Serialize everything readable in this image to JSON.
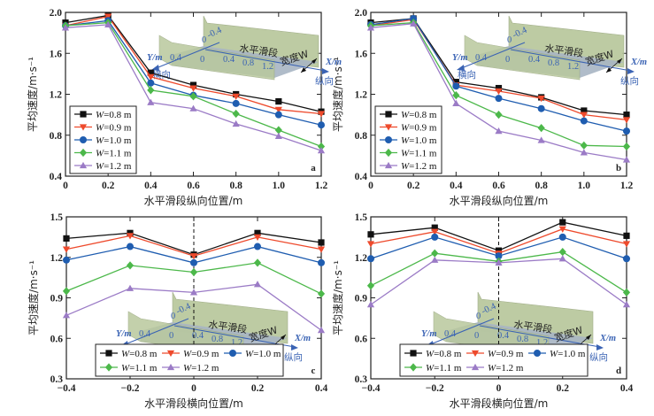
{
  "colors": {
    "W=0.8 m": "#111111",
    "W=0.9 m": "#ee4a2c",
    "W=1.0 m": "#1f5db0",
    "W=1.1 m": "#4cb84a",
    "W=1.2 m": "#9b7bc6"
  },
  "markers": {
    "W=0.8 m": "square",
    "W=0.9 m": "triangle-down",
    "W=1.0 m": "circle",
    "W=1.1 m": "diamond",
    "W=1.2 m": "triangle-up"
  },
  "inset": {
    "y_axis_label": "Y/m",
    "y_dir_label": "横向",
    "x_axis_label": "X/m",
    "x_dir_label": "纵向",
    "y_ticks": [
      "0.4",
      "0",
      "-0.4"
    ],
    "y_zero": "0",
    "x_ticks": [
      "0.4",
      "0.8",
      "1.2"
    ],
    "section_label": "水平滑段",
    "width_label": "宽度W"
  },
  "chart_data": [
    {
      "type": "line",
      "panel_label": "a",
      "title": "",
      "xlabel": "水平滑段纵向位置/m",
      "ylabel": "平均速度/m·s⁻¹",
      "xlim": [
        0,
        1.2
      ],
      "ylim": [
        0.4,
        2.0
      ],
      "xticks": [
        0,
        0.2,
        0.4,
        0.6,
        0.8,
        1.0,
        1.2
      ],
      "xtick_labels": [
        "0",
        "0.2",
        "0.4",
        "0.6",
        "0.8",
        "1.0",
        "1.2"
      ],
      "yticks": [
        0.4,
        0.8,
        1.2,
        1.6,
        2.0
      ],
      "ytick_labels": [
        "0.4",
        "0.8",
        "1.2",
        "1.6",
        "2.0"
      ],
      "dashed_vline": null,
      "legend_position": "lower-left",
      "legend_columns": 1,
      "x": [
        0,
        0.2,
        0.4,
        0.6,
        0.8,
        1.0,
        1.2
      ],
      "series": [
        {
          "name": "W=0.8 m",
          "values": [
            1.9,
            1.97,
            1.41,
            1.29,
            1.2,
            1.13,
            1.03
          ]
        },
        {
          "name": "W=0.9 m",
          "values": [
            1.87,
            1.96,
            1.37,
            1.26,
            1.18,
            1.05,
            1.01
          ]
        },
        {
          "name": "W=1.0 m",
          "values": [
            1.87,
            1.92,
            1.31,
            1.19,
            1.11,
            1.0,
            0.9
          ]
        },
        {
          "name": "W=1.1 m",
          "values": [
            1.87,
            1.9,
            1.24,
            1.18,
            1.01,
            0.85,
            0.69
          ]
        },
        {
          "name": "W=1.2 m",
          "values": [
            1.85,
            1.88,
            1.12,
            1.06,
            0.91,
            0.79,
            0.65
          ]
        }
      ]
    },
    {
      "type": "line",
      "panel_label": "b",
      "title": "",
      "xlabel": "水平滑段纵向位置/m",
      "ylabel": "平均速度/m·s⁻¹",
      "xlim": [
        0,
        1.2
      ],
      "ylim": [
        0.4,
        2.0
      ],
      "xticks": [
        0,
        0.2,
        0.4,
        0.6,
        0.8,
        1.0,
        1.2
      ],
      "xtick_labels": [
        "0",
        "0.2",
        "0.4",
        "0.6",
        "0.8",
        "1.0",
        "1.2"
      ],
      "yticks": [
        0.4,
        0.8,
        1.2,
        1.6,
        2.0
      ],
      "ytick_labels": [
        "0.4",
        "0.8",
        "1.2",
        "1.6",
        "2.0"
      ],
      "dashed_vline": null,
      "legend_position": "lower-left",
      "legend_columns": 1,
      "x": [
        0,
        0.2,
        0.4,
        0.6,
        0.8,
        1.0,
        1.2
      ],
      "series": [
        {
          "name": "W=0.8 m",
          "values": [
            1.9,
            1.94,
            1.32,
            1.26,
            1.17,
            1.04,
            1.0
          ]
        },
        {
          "name": "W=0.9 m",
          "values": [
            1.87,
            1.93,
            1.29,
            1.23,
            1.16,
            1.0,
            0.95
          ]
        },
        {
          "name": "W=1.0 m",
          "values": [
            1.88,
            1.94,
            1.28,
            1.16,
            1.06,
            0.94,
            0.84
          ]
        },
        {
          "name": "W=1.1 m",
          "values": [
            1.87,
            1.9,
            1.19,
            1.0,
            0.87,
            0.7,
            0.69
          ]
        },
        {
          "name": "W=1.2 m",
          "values": [
            1.85,
            1.89,
            1.11,
            0.84,
            0.75,
            0.63,
            0.56
          ]
        }
      ]
    },
    {
      "type": "line",
      "panel_label": "c",
      "title": "",
      "xlabel": "水平滑段横向位置/m",
      "ylabel": "平均速度/m·s⁻¹",
      "xlim": [
        -0.4,
        0.4
      ],
      "ylim": [
        0.3,
        1.5
      ],
      "xticks": [
        -0.4,
        -0.2,
        0,
        0.2,
        0.4
      ],
      "xtick_labels": [
        "−0.4",
        "−0.2",
        "0",
        "0.2",
        "0.4"
      ],
      "yticks": [
        0.3,
        0.6,
        0.9,
        1.2,
        1.5
      ],
      "ytick_labels": [
        "0.3",
        "0.6",
        "0.9",
        "1.2",
        "1.5"
      ],
      "dashed_vline": 0,
      "legend_position": "bottom-center",
      "legend_columns": 3,
      "x": [
        -0.4,
        -0.2,
        0,
        0.2,
        0.4
      ],
      "series": [
        {
          "name": "W=0.8 m",
          "values": [
            1.34,
            1.38,
            1.22,
            1.38,
            1.31
          ]
        },
        {
          "name": "W=0.9 m",
          "values": [
            1.26,
            1.36,
            1.21,
            1.35,
            1.26
          ]
        },
        {
          "name": "W=1.0 m",
          "values": [
            1.18,
            1.28,
            1.16,
            1.28,
            1.16
          ]
        },
        {
          "name": "W=1.1 m",
          "values": [
            0.95,
            1.14,
            1.09,
            1.16,
            0.93
          ]
        },
        {
          "name": "W=1.2 m",
          "values": [
            0.77,
            0.97,
            0.94,
            1.0,
            0.66
          ]
        }
      ]
    },
    {
      "type": "line",
      "panel_label": "d",
      "title": "",
      "xlabel": "水平滑段横向位置/m",
      "ylabel": "平均速度/m·s⁻¹",
      "xlim": [
        -0.4,
        0.4
      ],
      "ylim": [
        0.3,
        1.5
      ],
      "xticks": [
        -0.4,
        -0.2,
        0,
        0.2,
        0.4
      ],
      "xtick_labels": [
        "−0.4",
        "−0.2",
        "0",
        "0.2",
        "0.4"
      ],
      "yticks": [
        0.3,
        0.6,
        0.9,
        1.2,
        1.5
      ],
      "ytick_labels": [
        "0.3",
        "0.6",
        "0.9",
        "1.2",
        "1.5"
      ],
      "dashed_vline": 0,
      "legend_position": "bottom-center",
      "legend_columns": 3,
      "x": [
        -0.4,
        -0.2,
        0,
        0.2,
        0.4
      ],
      "series": [
        {
          "name": "W=0.8 m",
          "values": [
            1.37,
            1.42,
            1.25,
            1.46,
            1.36
          ]
        },
        {
          "name": "W=0.9 m",
          "values": [
            1.3,
            1.39,
            1.23,
            1.41,
            1.3
          ]
        },
        {
          "name": "W=1.0 m",
          "values": [
            1.19,
            1.35,
            1.21,
            1.35,
            1.19
          ]
        },
        {
          "name": "W=1.1 m",
          "values": [
            0.99,
            1.23,
            1.17,
            1.24,
            0.94
          ]
        },
        {
          "name": "W=1.2 m",
          "values": [
            0.85,
            1.18,
            1.16,
            1.19,
            0.85
          ]
        }
      ]
    }
  ]
}
